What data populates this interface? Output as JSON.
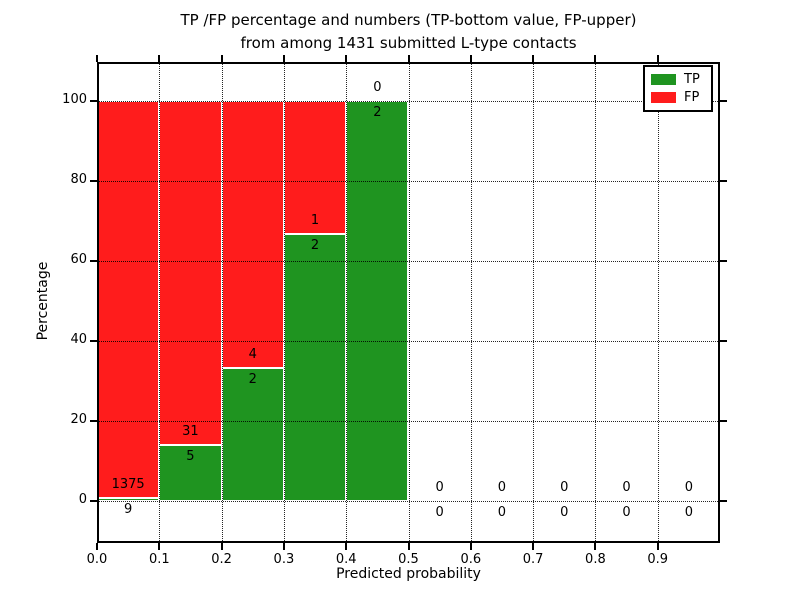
{
  "title_lines": [
    "TP /FP percentage and numbers (TP-bottom value, FP-upper)",
    "from among 1431 submitted L-type contacts"
  ],
  "chart_data": {
    "type": "bar",
    "stacked": true,
    "title": "TP /FP percentage and numbers (TP-bottom value, FP-upper)\nfrom among 1431 submitted L-type contacts",
    "xlabel": "Predicted probability",
    "ylabel": "Percentage",
    "xlim": [
      0.0,
      1.0
    ],
    "ylim": [
      -10,
      110
    ],
    "yticks": [
      0,
      20,
      40,
      60,
      80,
      100
    ],
    "xtick_labels": [
      "0.0",
      "0.1",
      "0.2",
      "0.3",
      "0.4",
      "0.5",
      "0.6",
      "0.7",
      "0.8",
      "0.9"
    ],
    "grid": {
      "style": "dotted",
      "axes": "both"
    },
    "colors": {
      "tp": "#1f9420",
      "fp": "#ff1c1c",
      "bar_edge": "#ffffff"
    },
    "legend": {
      "position": "upper right",
      "entries": [
        {
          "label": "TP",
          "color": "#1f9420"
        },
        {
          "label": "FP",
          "color": "#ff1c1c"
        }
      ]
    },
    "bins": [
      {
        "range": [
          0.0,
          0.1
        ],
        "tp": 9,
        "fp": 1375,
        "tp_pct": 0.65
      },
      {
        "range": [
          0.1,
          0.2
        ],
        "tp": 5,
        "fp": 31,
        "tp_pct": 13.89
      },
      {
        "range": [
          0.2,
          0.3
        ],
        "tp": 2,
        "fp": 4,
        "tp_pct": 33.33
      },
      {
        "range": [
          0.3,
          0.4
        ],
        "tp": 2,
        "fp": 1,
        "tp_pct": 66.67
      },
      {
        "range": [
          0.4,
          0.5
        ],
        "tp": 2,
        "fp": 0,
        "tp_pct": 100
      },
      {
        "range": [
          0.5,
          0.6
        ],
        "tp": 0,
        "fp": 0,
        "tp_pct": 0
      },
      {
        "range": [
          0.6,
          0.7
        ],
        "tp": 0,
        "fp": 0,
        "tp_pct": 0
      },
      {
        "range": [
          0.7,
          0.8
        ],
        "tp": 0,
        "fp": 0,
        "tp_pct": 0
      },
      {
        "range": [
          0.8,
          0.9
        ],
        "tp": 0,
        "fp": 0,
        "tp_pct": 0
      },
      {
        "range": [
          0.9,
          1.0
        ],
        "tp": 0,
        "fp": 0,
        "tp_pct": 0
      }
    ]
  }
}
